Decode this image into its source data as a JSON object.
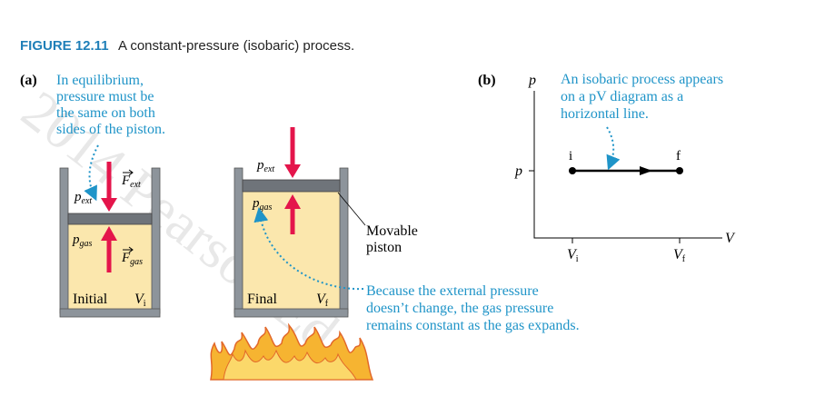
{
  "header": {
    "label": "FIGURE 12.11",
    "title": "A constant-pressure (isobaric) process."
  },
  "watermark": "2014 Pearson Ed",
  "panel_a": {
    "label": "(a)",
    "note": [
      "In equilibrium,",
      "pressure must be",
      "the same on both",
      "sides of the piston."
    ],
    "initial": {
      "p_ext": {
        "symbol": "p",
        "sub": "ext"
      },
      "f_ext": {
        "symbol": "F",
        "sub": "ext"
      },
      "p_gas": {
        "symbol": "p",
        "sub": "gas"
      },
      "f_gas": {
        "symbol": "F",
        "sub": "gas"
      },
      "state": "Initial",
      "volume": {
        "symbol": "V",
        "sub": "i"
      }
    },
    "final": {
      "p_ext": {
        "symbol": "p",
        "sub": "ext"
      },
      "p_gas": {
        "symbol": "p",
        "sub": "gas"
      },
      "state": "Final",
      "volume": {
        "symbol": "V",
        "sub": "f"
      }
    },
    "piston_label": [
      "Movable",
      "piston"
    ],
    "caption": [
      "Because the external pressure",
      "doesn’t change, the gas pressure",
      "remains constant as the gas expands."
    ]
  },
  "panel_b": {
    "label": "(b)",
    "y_axis": "p",
    "x_axis": "V",
    "note": [
      "An isobaric process appears",
      "on  a pV diagram as a",
      "horizontal line."
    ],
    "point_start": "i",
    "point_end": "f",
    "y_tick": "p",
    "x_ticks": [
      {
        "symbol": "V",
        "sub": "i"
      },
      {
        "symbol": "V",
        "sub": "f"
      }
    ]
  }
}
